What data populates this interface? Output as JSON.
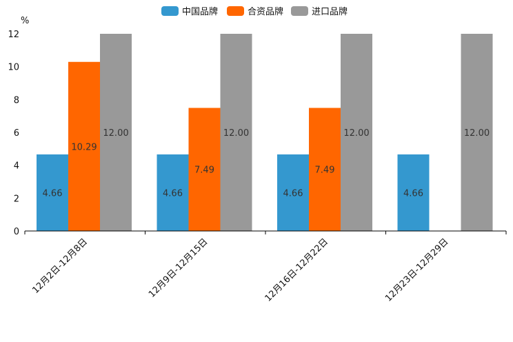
{
  "chart_data": {
    "type": "bar",
    "unit_label": "%",
    "categories": [
      "12月2日-12月8日",
      "12月9日-12月15日",
      "12月16日-12月22日",
      "12月23日-12月29日"
    ],
    "series": [
      {
        "name": "中国品牌",
        "color": "#3498cf",
        "values": [
          4.66,
          4.66,
          4.66,
          4.66
        ],
        "labels": [
          "4.66",
          "4.66",
          "4.66",
          "4.66"
        ]
      },
      {
        "name": "合资品牌",
        "color": "#ff6600",
        "values": [
          10.29,
          7.49,
          7.49,
          null
        ],
        "labels": [
          "10.29",
          "7.49",
          "7.49",
          null
        ]
      },
      {
        "name": "进口品牌",
        "color": "#999999",
        "values": [
          12.0,
          12.0,
          12.0,
          12.0
        ],
        "labels": [
          "12.00",
          "12.00",
          "12.00",
          "12.00"
        ]
      }
    ],
    "y_ticks": [
      "0",
      "2",
      "4",
      "6",
      "8",
      "10",
      "12"
    ],
    "ylim": [
      0,
      12
    ],
    "legend": "top-center",
    "grid": false
  }
}
